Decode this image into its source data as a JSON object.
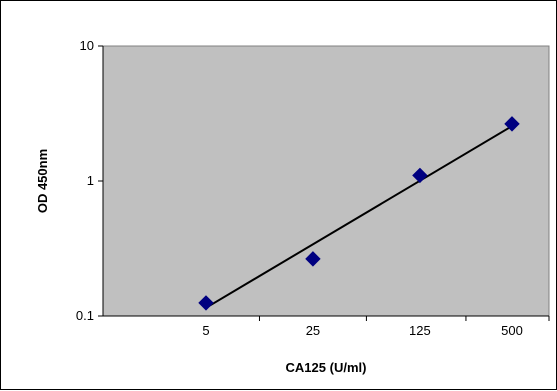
{
  "chart_data": {
    "type": "scatter",
    "title": "",
    "xlabel": "CA125 (U/ml)",
    "ylabel": "OD 450nm",
    "x_scale": "log",
    "y_scale": "log",
    "x_ticks": [
      5,
      25,
      125,
      500
    ],
    "x_tick_labels": [
      "5",
      "25",
      "125",
      "500"
    ],
    "y_ticks": [
      0.1,
      1,
      10
    ],
    "y_tick_labels": [
      "0.1",
      "1",
      "10"
    ],
    "ylim": [
      0.1,
      10
    ],
    "grid": false,
    "legend": "none",
    "series": [
      {
        "x": [
          5,
          25,
          125,
          500
        ],
        "y": [
          0.125,
          0.265,
          1.1,
          2.65
        ],
        "marker": "diamond",
        "color": "#000080"
      }
    ],
    "trendline": {
      "x": [
        5,
        500
      ],
      "y": [
        0.115,
        2.55
      ],
      "color": "#000000"
    },
    "colors": {
      "plot_background": "#c0c0c0",
      "plot_border": "#808080",
      "marker": "#000080",
      "trendline": "#000000"
    }
  }
}
